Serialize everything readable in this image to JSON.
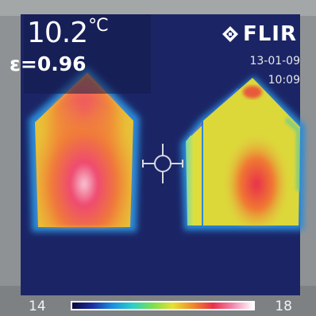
{
  "measurement": {
    "temperature_value": "10.2",
    "temperature_unit": "°C",
    "emissivity": "ε=0.96"
  },
  "brand": {
    "logo_text": "FLIR",
    "icon": "flir-logo-icon"
  },
  "timestamp": {
    "date": "13-01-09",
    "time": "10:09"
  },
  "color_scale": {
    "min_label": "14",
    "max_label": "18",
    "gradient_colors": [
      "#0a0a3a",
      "#1a2fa0",
      "#1a8fe0",
      "#2ad0c8",
      "#7ae050",
      "#e8e030",
      "#f08a2a",
      "#e8304a",
      "#f08ab0",
      "#ffffff"
    ]
  },
  "colors": {
    "background_cold": "#1b2566",
    "frame_gray": "#8f9294",
    "hot_core": "#e8304a"
  },
  "icons": {
    "crosshair": "crosshair-icon"
  }
}
